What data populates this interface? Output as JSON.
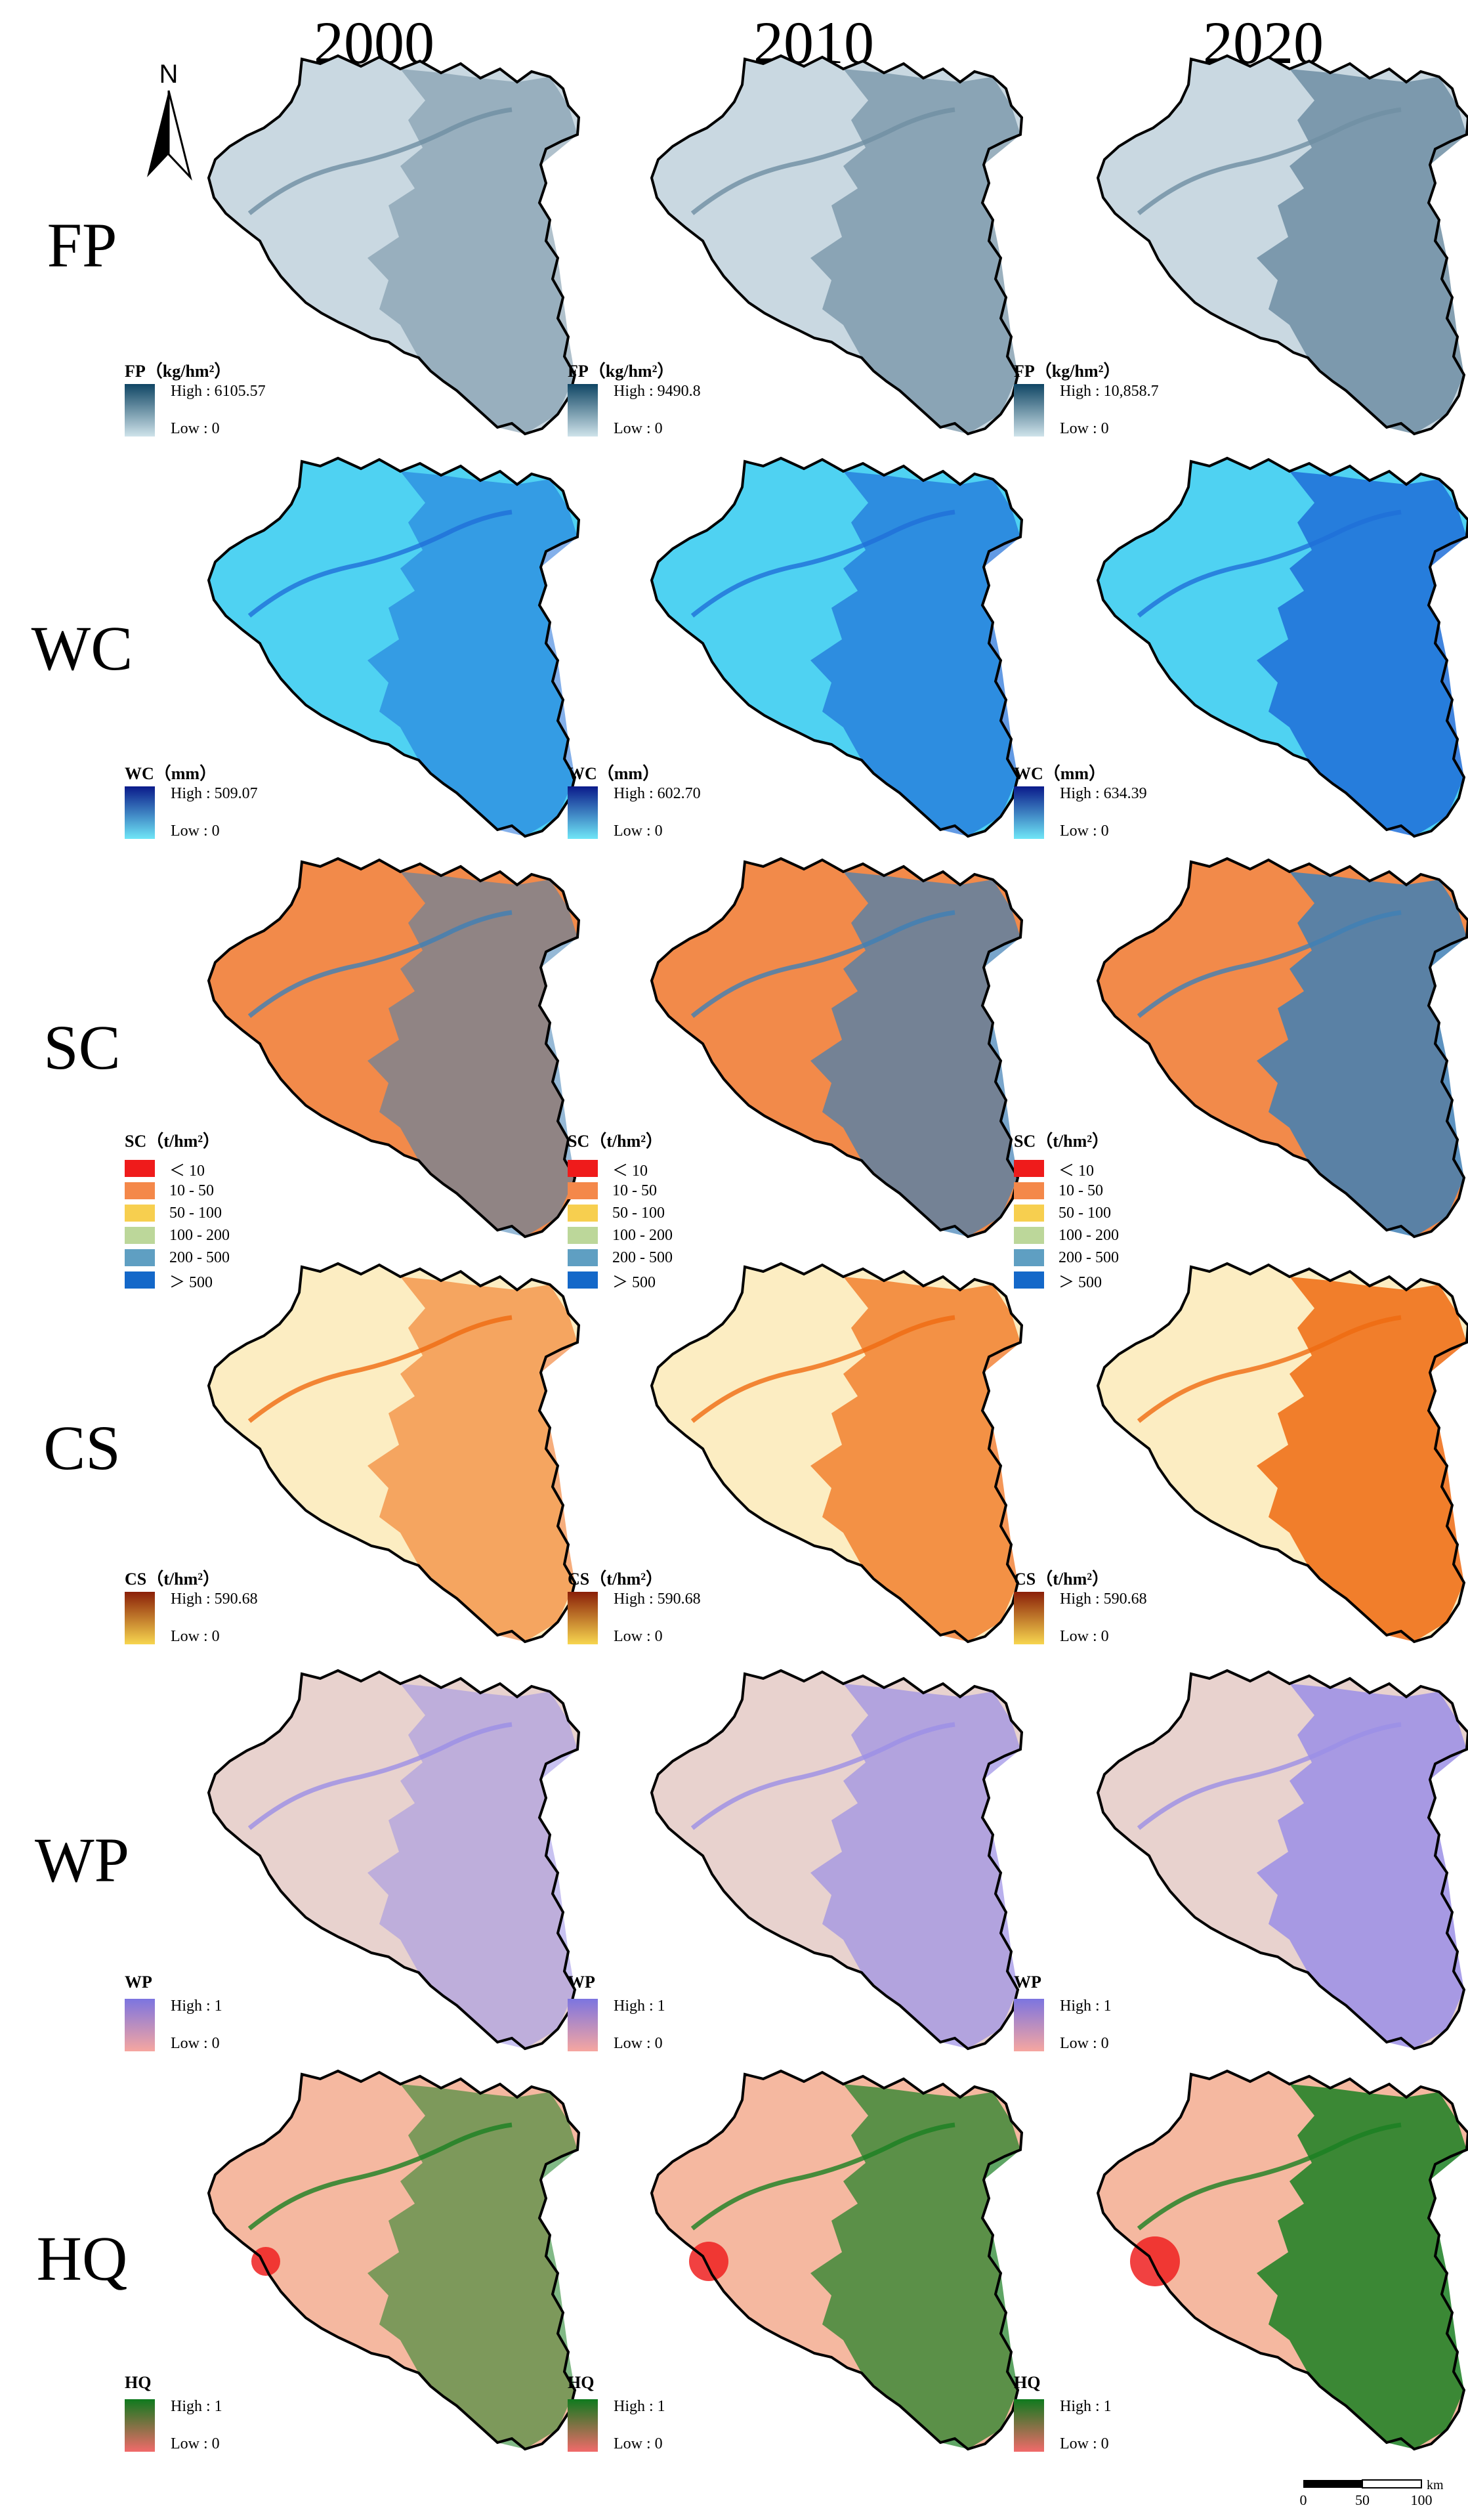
{
  "years": [
    "2000",
    "2010",
    "2020"
  ],
  "north_label": "N",
  "rows": [
    {
      "label": "FP",
      "type": "ramp",
      "ramp": [
        "#0f4564",
        "#cfe3ea"
      ],
      "base": "#c9d8e1",
      "hi": "#6f8ea3",
      "legends": [
        {
          "title": "FP（kg/hm²）",
          "high": "High : 6105.57",
          "low": "Low : 0"
        },
        {
          "title": "FP（kg/hm²）",
          "high": "High : 9490.8",
          "low": "Low : 0"
        },
        {
          "title": "FP（kg/hm²）",
          "high": "High : 10,858.7",
          "low": "Low : 0"
        }
      ]
    },
    {
      "label": "WC",
      "type": "ramp",
      "ramp": [
        "#0a1a8a",
        "#6fe6f7"
      ],
      "base": "#4fd2f2",
      "hi": "#1f6fd8",
      "legends": [
        {
          "title": "WC（mm）",
          "high": "High : 509.07",
          "low": "Low : 0"
        },
        {
          "title": "WC（mm）",
          "high": "High : 602.70",
          "low": "Low : 0"
        },
        {
          "title": "WC（mm）",
          "high": "High : 634.39",
          "low": "Low : 0"
        }
      ]
    },
    {
      "label": "SC",
      "type": "classes",
      "base": "#f28a4a",
      "hi": "#3f7fb5",
      "classes": [
        {
          "color": "#ef1b1b",
          "label": "＜ 10"
        },
        {
          "color": "#f4884a",
          "label": "10 - 50"
        },
        {
          "color": "#f7cf4f",
          "label": "50 - 100"
        },
        {
          "color": "#bcd79a",
          "label": "100 - 200"
        },
        {
          "color": "#5f9fc2",
          "label": "200 - 500"
        },
        {
          "color": "#1468c9",
          "label": "＞ 500"
        }
      ],
      "legends": [
        {
          "title": "SC（t/hm²）"
        },
        {
          "title": "SC（t/hm²）"
        },
        {
          "title": "SC（t/hm²）"
        }
      ]
    },
    {
      "label": "CS",
      "type": "ramp",
      "ramp": [
        "#8a1f08",
        "#f7d64f"
      ],
      "base": "#fcedc2",
      "hi": "#ef6a10",
      "legends": [
        {
          "title": "CS（t/hm²）",
          "high": "High : 590.68",
          "low": "Low : 0"
        },
        {
          "title": "CS（t/hm²）",
          "high": "High : 590.68",
          "low": "Low : 0"
        },
        {
          "title": "CS（t/hm²）",
          "high": "High : 590.68",
          "low": "Low : 0"
        }
      ]
    },
    {
      "label": "WP",
      "type": "ramp",
      "ramp": [
        "#7c74e0",
        "#f6a6a0"
      ],
      "base": "#e8d2ce",
      "hi": "#9b8fe6",
      "legends": [
        {
          "title": "WP",
          "high": "High : 1",
          "low": "Low : 0"
        },
        {
          "title": "WP",
          "high": "High : 1",
          "low": "Low : 0"
        },
        {
          "title": "WP",
          "high": "High : 1",
          "low": "Low : 0"
        }
      ]
    },
    {
      "label": "HQ",
      "type": "ramp",
      "ramp": [
        "#0f7a1e",
        "#f26a6a"
      ],
      "base": "#f5b8a0",
      "hi": "#1a7f22",
      "legends": [
        {
          "title": "HQ",
          "high": "High : 1",
          "low": "Low : 0"
        },
        {
          "title": "HQ",
          "high": "High : 1",
          "low": "Low : 0"
        },
        {
          "title": "HQ",
          "high": "High : 1",
          "low": "Low : 0"
        }
      ]
    }
  ],
  "scale_bar": {
    "ticks": [
      "0",
      "50",
      "100"
    ],
    "unit": "km"
  }
}
